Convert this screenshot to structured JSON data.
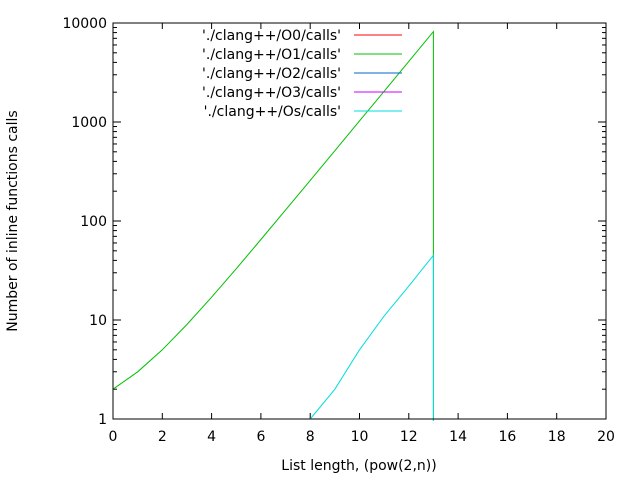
{
  "chart_data": {
    "type": "line",
    "title": "",
    "xlabel": "List length, (pow(2,n))",
    "ylabel": "Number of inline functions calls",
    "xlim": [
      0,
      20
    ],
    "ylim": [
      1,
      10000
    ],
    "yscale": "log",
    "grid": false,
    "legend_position": "top-left",
    "x_ticks": [
      "0",
      "2",
      "4",
      "6",
      "8",
      "10",
      "12",
      "14",
      "16",
      "18",
      "20"
    ],
    "y_ticks": [
      "1",
      "10",
      "100",
      "1000",
      "10000"
    ],
    "series": [
      {
        "name": "'./clang++/O0/calls'",
        "color": "#ff0000",
        "x": [],
        "y": []
      },
      {
        "name": "'./clang++/O2/calls'",
        "color": "#0066cc",
        "x": [],
        "y": []
      },
      {
        "name": "'./clang++/O3/calls'",
        "color": "#cc00ff",
        "x": [],
        "y": []
      },
      {
        "name": "'./clang++/O1/calls'",
        "color": "#00c000",
        "x": [
          0,
          1,
          2,
          3,
          4,
          5,
          6,
          7,
          8,
          9,
          10,
          11,
          12,
          13,
          13
        ],
        "y": [
          2,
          3,
          5,
          9,
          17,
          33,
          65,
          129,
          257,
          513,
          1025,
          2049,
          4097,
          8193,
          0
        ]
      },
      {
        "name": "'./clang++/Os/calls'",
        "color": "#00dddd",
        "x": [
          8,
          9,
          10,
          11,
          12,
          13,
          13
        ],
        "y": [
          1,
          2,
          5,
          11,
          22,
          45,
          0
        ]
      }
    ],
    "legend_order": [
      "'./clang++/O0/calls'",
      "'./clang++/O1/calls'",
      "'./clang++/O2/calls'",
      "'./clang++/O3/calls'",
      "'./clang++/Os/calls'"
    ]
  }
}
